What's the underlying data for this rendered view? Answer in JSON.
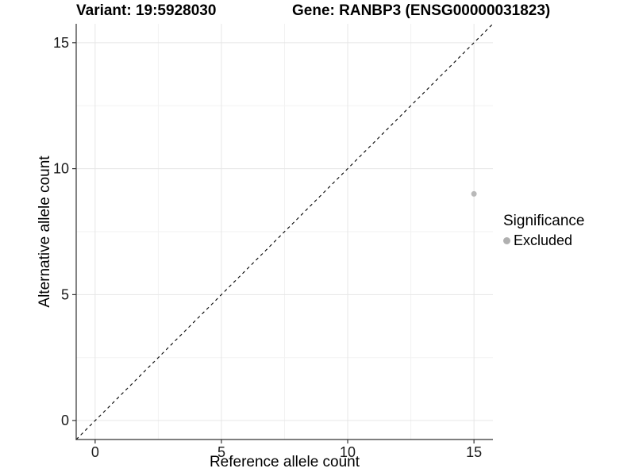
{
  "titles": {
    "variant": "Variant: 19:5928030",
    "gene": "Gene: RANBP3 (ENSG00000031823)"
  },
  "chart_data": {
    "type": "scatter",
    "xlabel": "Reference allele count",
    "ylabel": "Alternative allele count",
    "xlim": [
      -0.75,
      15.75
    ],
    "ylim": [
      -0.75,
      15.75
    ],
    "xticks": [
      0,
      5,
      10,
      15
    ],
    "yticks": [
      0,
      5,
      10,
      15
    ],
    "xticks_minor": [
      2.5,
      7.5,
      12.5
    ],
    "yticks_minor": [
      2.5,
      7.5,
      12.5
    ],
    "grid": true,
    "reference_line": {
      "type": "abline",
      "slope": 1,
      "intercept": 0,
      "style": "dashed",
      "color": "#000000"
    },
    "series": [
      {
        "name": "Excluded",
        "color": "#b9b9b9",
        "points": [
          {
            "x": 15,
            "y": 9
          }
        ]
      }
    ],
    "legend": {
      "title": "Significance",
      "position": "right",
      "items": [
        {
          "label": "Excluded",
          "color": "#b0b0b0"
        }
      ]
    }
  },
  "colors": {
    "background": "#ffffff",
    "grid_major": "#e6e6e6",
    "grid_minor": "#f2f2f2",
    "axis_line": "#333333",
    "tick_mark": "#333333",
    "tick_label": "#1a1a1a"
  }
}
